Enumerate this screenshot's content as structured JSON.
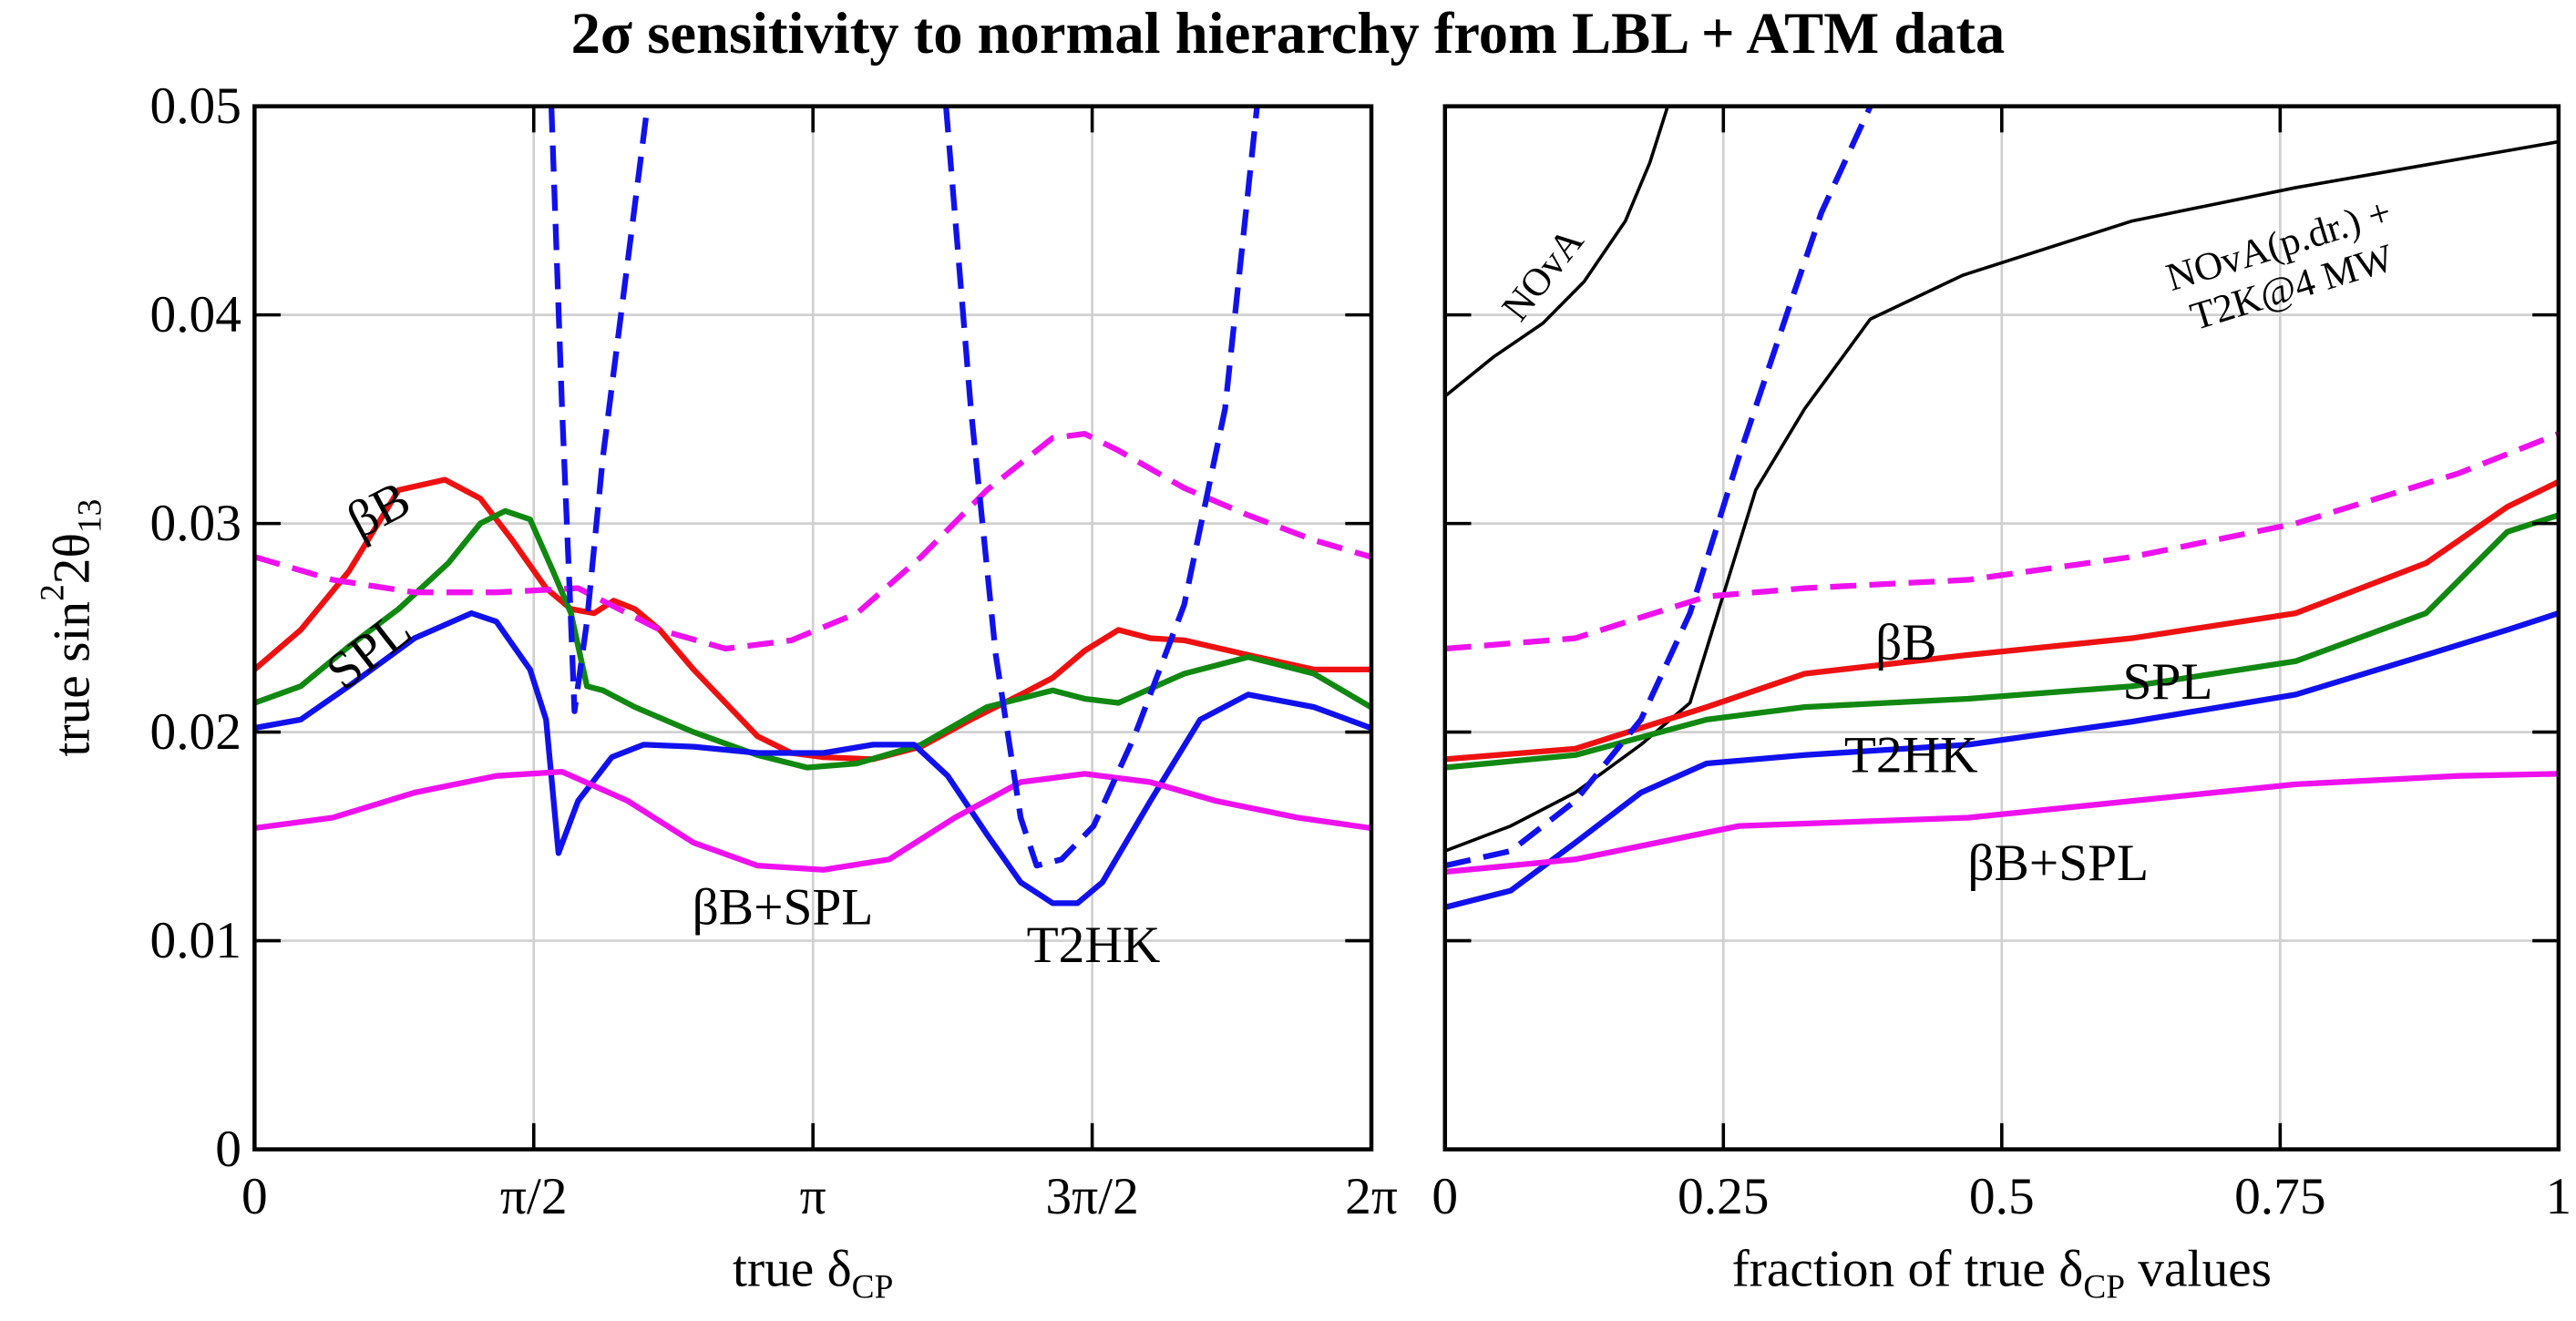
{
  "title": "2σ sensitivity to normal hierarchy from LBL + ATM data",
  "chart_data": [
    {
      "type": "line",
      "xlabel": [
        {
          "text": "true δ"
        },
        {
          "sub": "CP"
        }
      ],
      "ylabel": [
        {
          "text": "true  sin"
        },
        {
          "sup": "2"
        },
        {
          "text": "2θ"
        },
        {
          "sub": "13"
        }
      ],
      "xlim": [
        0,
        6.2832
      ],
      "xticks": [
        {
          "value": 0,
          "label": "0"
        },
        {
          "value": 1.5708,
          "label": "π/2"
        },
        {
          "value": 3.1416,
          "label": "π"
        },
        {
          "value": 4.7124,
          "label": "3π/2"
        },
        {
          "value": 6.2832,
          "label": "2π"
        }
      ],
      "ylim": [
        0,
        0.05
      ],
      "yticks": [
        0,
        0.01,
        0.02,
        0.03,
        0.04,
        0.05
      ],
      "ytick_labels": true,
      "grid": true,
      "series": [
        {
          "name": "βB",
          "color": "#ee1111",
          "dash": false,
          "x": [
            0,
            0.26,
            0.53,
            0.81,
            1.07,
            1.27,
            1.45,
            1.64,
            1.78,
            1.91,
            2.02,
            2.14,
            2.28,
            2.47,
            2.65,
            2.83,
            3.02,
            3.2,
            3.48,
            3.75,
            4.03,
            4.31,
            4.49,
            4.67,
            4.86,
            5.04,
            5.23,
            5.59,
            5.96,
            6.28
          ],
          "values": [
            0.023,
            0.0249,
            0.0277,
            0.0316,
            0.0321,
            0.0312,
            0.0292,
            0.0269,
            0.0259,
            0.0257,
            0.0263,
            0.0259,
            0.0249,
            0.023,
            0.0214,
            0.0198,
            0.019,
            0.0188,
            0.0187,
            0.0193,
            0.0206,
            0.0218,
            0.0226,
            0.0239,
            0.0249,
            0.0245,
            0.0244,
            0.0237,
            0.023,
            0.023
          ]
        },
        {
          "name": "SPL",
          "color": "#118811",
          "dash": false,
          "x": [
            0,
            0.26,
            0.53,
            0.81,
            1.09,
            1.27,
            1.41,
            1.55,
            1.68,
            1.78,
            1.87,
            1.96,
            2.14,
            2.47,
            2.83,
            3.11,
            3.39,
            3.75,
            4.12,
            4.49,
            4.67,
            4.86,
            5.23,
            5.59,
            5.96,
            6.28
          ],
          "values": [
            0.0214,
            0.0222,
            0.0241,
            0.0259,
            0.0281,
            0.03,
            0.0306,
            0.0302,
            0.0277,
            0.0257,
            0.0222,
            0.022,
            0.0212,
            0.02,
            0.0189,
            0.0183,
            0.0185,
            0.0194,
            0.0212,
            0.022,
            0.0216,
            0.0214,
            0.0228,
            0.0236,
            0.0228,
            0.0212
          ]
        },
        {
          "name": "T2HK",
          "color": "#1111ee",
          "dash": false,
          "x": [
            0,
            0.26,
            0.53,
            0.9,
            1.22,
            1.36,
            1.55,
            1.64,
            1.71,
            1.82,
            2.01,
            2.19,
            2.47,
            2.83,
            3.2,
            3.48,
            3.71,
            3.9,
            4.12,
            4.31,
            4.49,
            4.63,
            4.77,
            5.04,
            5.32,
            5.59,
            5.96,
            6.28
          ],
          "values": [
            0.0202,
            0.0206,
            0.0222,
            0.0245,
            0.0257,
            0.0253,
            0.023,
            0.0206,
            0.0142,
            0.0167,
            0.0188,
            0.0194,
            0.0193,
            0.019,
            0.019,
            0.0194,
            0.0194,
            0.0179,
            0.0151,
            0.0128,
            0.0118,
            0.0118,
            0.0128,
            0.0167,
            0.0206,
            0.0218,
            0.0212,
            0.0202
          ]
        },
        {
          "name": "βB+SPL",
          "color": "#ee11ee",
          "dash": false,
          "x": [
            0,
            0.44,
            0.9,
            1.36,
            1.73,
            2.1,
            2.47,
            2.83,
            3.2,
            3.57,
            3.94,
            4.31,
            4.67,
            5.04,
            5.41,
            5.87,
            6.28
          ],
          "values": [
            0.0154,
            0.0159,
            0.0171,
            0.0179,
            0.0181,
            0.0167,
            0.0147,
            0.0136,
            0.0134,
            0.0139,
            0.0159,
            0.0176,
            0.018,
            0.0176,
            0.0167,
            0.0159,
            0.0154
          ]
        },
        {
          "color": "#ee11ee",
          "dash": true,
          "x": [
            0,
            0.44,
            0.9,
            1.36,
            1.82,
            2.28,
            2.65,
            3.02,
            3.39,
            3.75,
            4.12,
            4.49,
            4.67,
            4.86,
            5.23,
            5.59,
            5.96,
            6.28
          ],
          "values": [
            0.0284,
            0.0273,
            0.0267,
            0.0267,
            0.0269,
            0.0249,
            0.024,
            0.0244,
            0.0257,
            0.0284,
            0.0316,
            0.0341,
            0.0343,
            0.0335,
            0.0317,
            0.0304,
            0.0292,
            0.0284
          ]
        },
        {
          "color": "#1111ee",
          "dash": true,
          "x": [
            1.67,
            1.73,
            1.78,
            1.8,
            1.87,
            1.96,
            2.1,
            2.21,
            3.0,
            3.89,
            4.03,
            4.17,
            4.31,
            4.4,
            4.54,
            4.72,
            4.95,
            5.23,
            5.46,
            5.64
          ],
          "values": [
            0.05,
            0.0355,
            0.0253,
            0.021,
            0.0253,
            0.0332,
            0.0426,
            0.05,
            null,
            0.05,
            0.0355,
            0.0237,
            0.0159,
            0.0136,
            0.0139,
            0.0155,
            0.0198,
            0.0261,
            0.0355,
            0.05
          ]
        }
      ]
    },
    {
      "type": "line",
      "xlabel": [
        {
          "text": "fraction of true δ"
        },
        {
          "sub": "CP"
        },
        {
          "text": " values"
        }
      ],
      "xlim": [
        0,
        1
      ],
      "xticks": [
        0,
        0.25,
        0.5,
        0.75,
        1
      ],
      "ylim": [
        0,
        0.05
      ],
      "yticks": [
        0,
        0.01,
        0.02,
        0.03,
        0.04,
        0.05
      ],
      "ytick_labels": false,
      "grid": true,
      "annotations": [
        {
          "text": "NOvA(p.dr.) +"
        },
        {
          "text": "T2K@4 MW"
        }
      ],
      "series": [
        {
          "name": "NOvA",
          "color": "#000000",
          "dash": false,
          "x": [
            0,
            0.044,
            0.088,
            0.125,
            0.162,
            0.184,
            0.2
          ],
          "values": [
            0.0361,
            0.038,
            0.0396,
            0.0416,
            0.0445,
            0.0473,
            0.05
          ]
        },
        {
          "color": "#000000",
          "dash": false,
          "x": [
            0,
            0.059,
            0.117,
            0.176,
            0.22,
            0.279,
            0.323,
            0.382,
            0.465,
            0.617,
            0.764,
            1
          ],
          "values": [
            0.0143,
            0.0155,
            0.0171,
            0.0194,
            0.0214,
            0.0316,
            0.0355,
            0.0398,
            0.0419,
            0.0445,
            0.0461,
            0.0483
          ]
        },
        {
          "name": "βB",
          "color": "#ee1111",
          "dash": false,
          "x": [
            0,
            0.117,
            0.235,
            0.323,
            0.47,
            0.617,
            0.764,
            0.881,
            0.954,
            1
          ],
          "values": [
            0.0187,
            0.0192,
            0.0212,
            0.0228,
            0.0237,
            0.0245,
            0.0257,
            0.0281,
            0.0308,
            0.032
          ]
        },
        {
          "name": "SPL",
          "color": "#118811",
          "dash": false,
          "x": [
            0,
            0.117,
            0.235,
            0.323,
            0.47,
            0.617,
            0.764,
            0.881,
            0.954,
            1
          ],
          "values": [
            0.0183,
            0.0189,
            0.0206,
            0.0212,
            0.0216,
            0.0222,
            0.0234,
            0.0257,
            0.0296,
            0.0304
          ]
        },
        {
          "name": "T2HK",
          "color": "#1111ee",
          "dash": false,
          "x": [
            0,
            0.059,
            0.117,
            0.176,
            0.235,
            0.323,
            0.47,
            0.617,
            0.764,
            0.881,
            0.954,
            1
          ],
          "values": [
            0.0116,
            0.0124,
            0.0147,
            0.0171,
            0.0185,
            0.0189,
            0.0194,
            0.0205,
            0.0218,
            0.0237,
            0.0249,
            0.0257
          ]
        },
        {
          "name": "βB+SPL",
          "color": "#ee11ee",
          "dash": false,
          "x": [
            0,
            0.117,
            0.264,
            0.47,
            0.617,
            0.764,
            0.91,
            1
          ],
          "values": [
            0.0133,
            0.0139,
            0.0155,
            0.0159,
            0.0167,
            0.0175,
            0.0179,
            0.018
          ]
        },
        {
          "color": "#ee11ee",
          "dash": true,
          "x": [
            0,
            0.117,
            0.235,
            0.323,
            0.47,
            0.617,
            0.764,
            0.91,
            1
          ],
          "values": [
            0.024,
            0.0245,
            0.0265,
            0.0269,
            0.0273,
            0.0284,
            0.03,
            0.0324,
            0.0343
          ]
        },
        {
          "color": "#1111ee",
          "dash": true,
          "x": [
            0,
            0.059,
            0.117,
            0.176,
            0.22,
            0.264,
            0.308,
            0.338,
            0.382
          ],
          "values": [
            0.0136,
            0.0143,
            0.0167,
            0.0206,
            0.0257,
            0.0332,
            0.0402,
            0.0449,
            0.05
          ]
        }
      ]
    }
  ]
}
